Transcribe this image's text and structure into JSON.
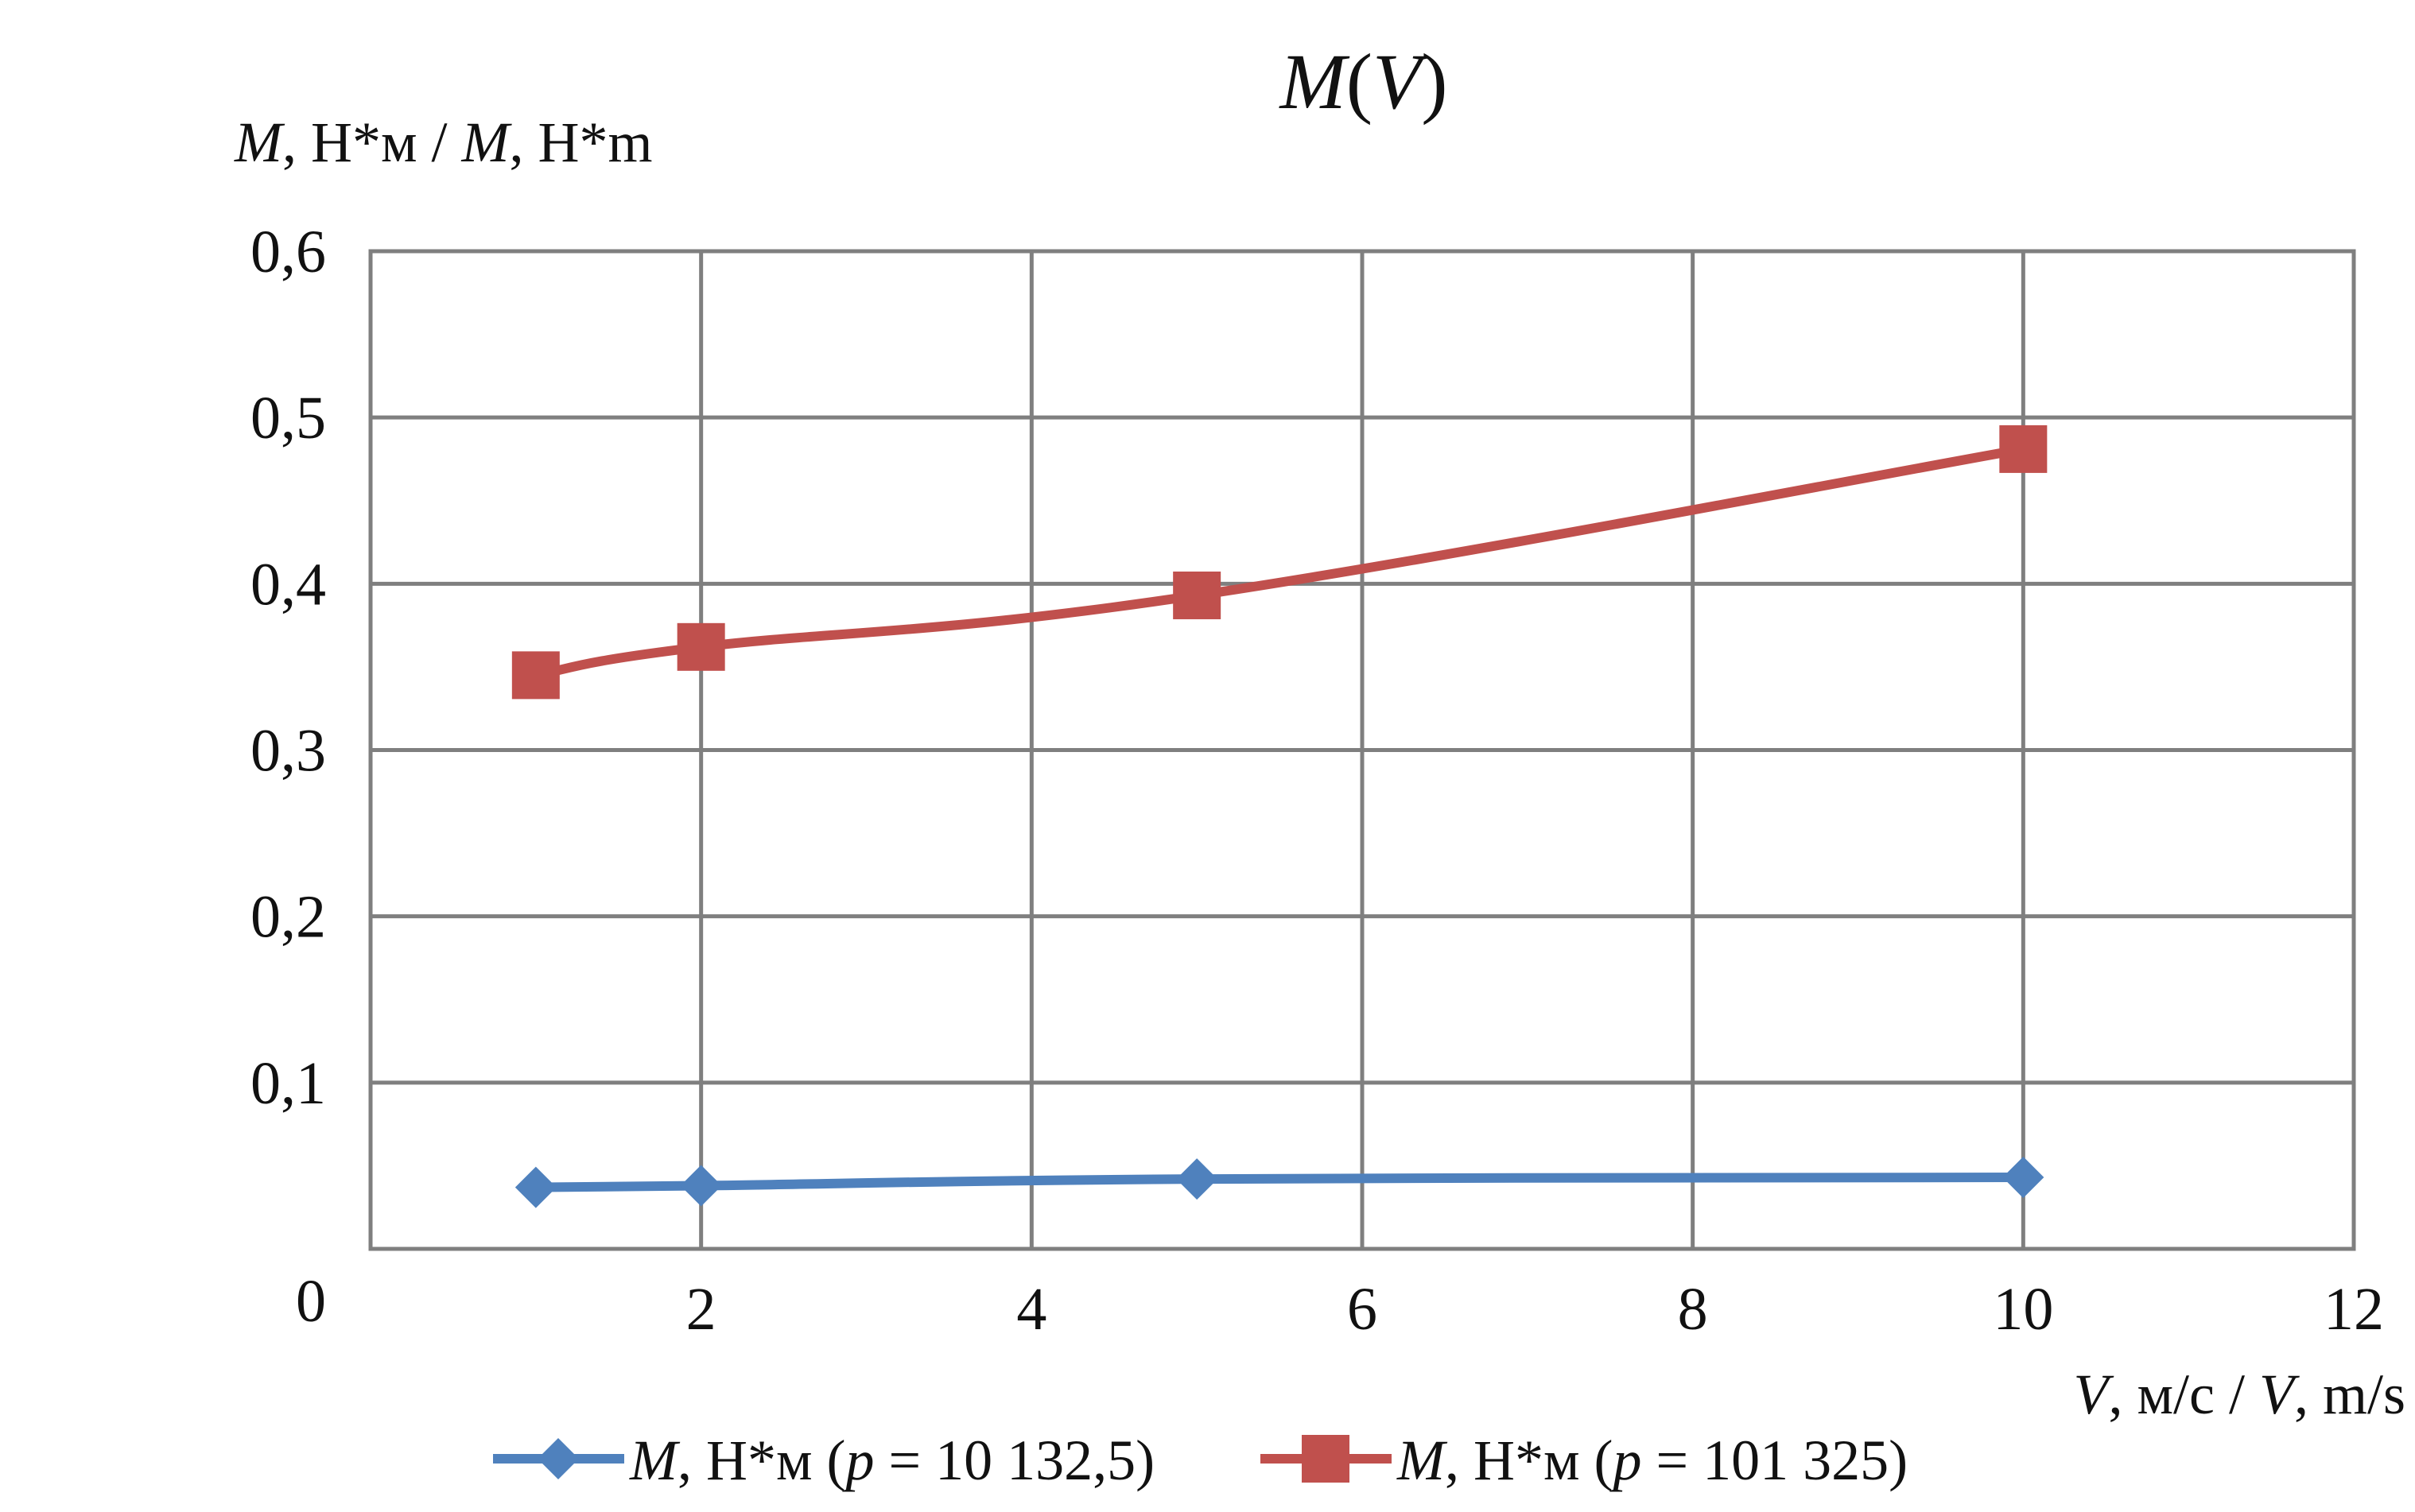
{
  "chart_data": {
    "type": "line",
    "title": "M(V)",
    "ylabel": "M, Н*м / M, Н*m",
    "xlabel": "V, м/с / V, m/s",
    "xlim": [
      0,
      12
    ],
    "ylim": [
      0,
      0.6
    ],
    "x_ticks": [
      0,
      2,
      4,
      6,
      8,
      10,
      12
    ],
    "x_tick_labels": [
      "0",
      "2",
      "4",
      "6",
      "8",
      "10",
      "12"
    ],
    "y_ticks": [
      0.1,
      0.2,
      0.3,
      0.4,
      0.5,
      0.6
    ],
    "y_tick_labels": [
      "0,1",
      "0,2",
      "0,3",
      "0,4",
      "0,5",
      "0,6"
    ],
    "grid": true,
    "legend_position": "bottom",
    "x": [
      1,
      2,
      5,
      10
    ],
    "series": [
      {
        "name": "M, Н*м (p = 10 132,5)",
        "values": [
          0.037,
          0.038,
          0.042,
          0.043
        ],
        "color": "#4f81bd",
        "marker": "diamond"
      },
      {
        "name": "M, Н*м (p = 101 325)",
        "values": [
          0.345,
          0.362,
          0.393,
          0.481
        ],
        "color": "#c0504d",
        "marker": "square"
      }
    ]
  }
}
